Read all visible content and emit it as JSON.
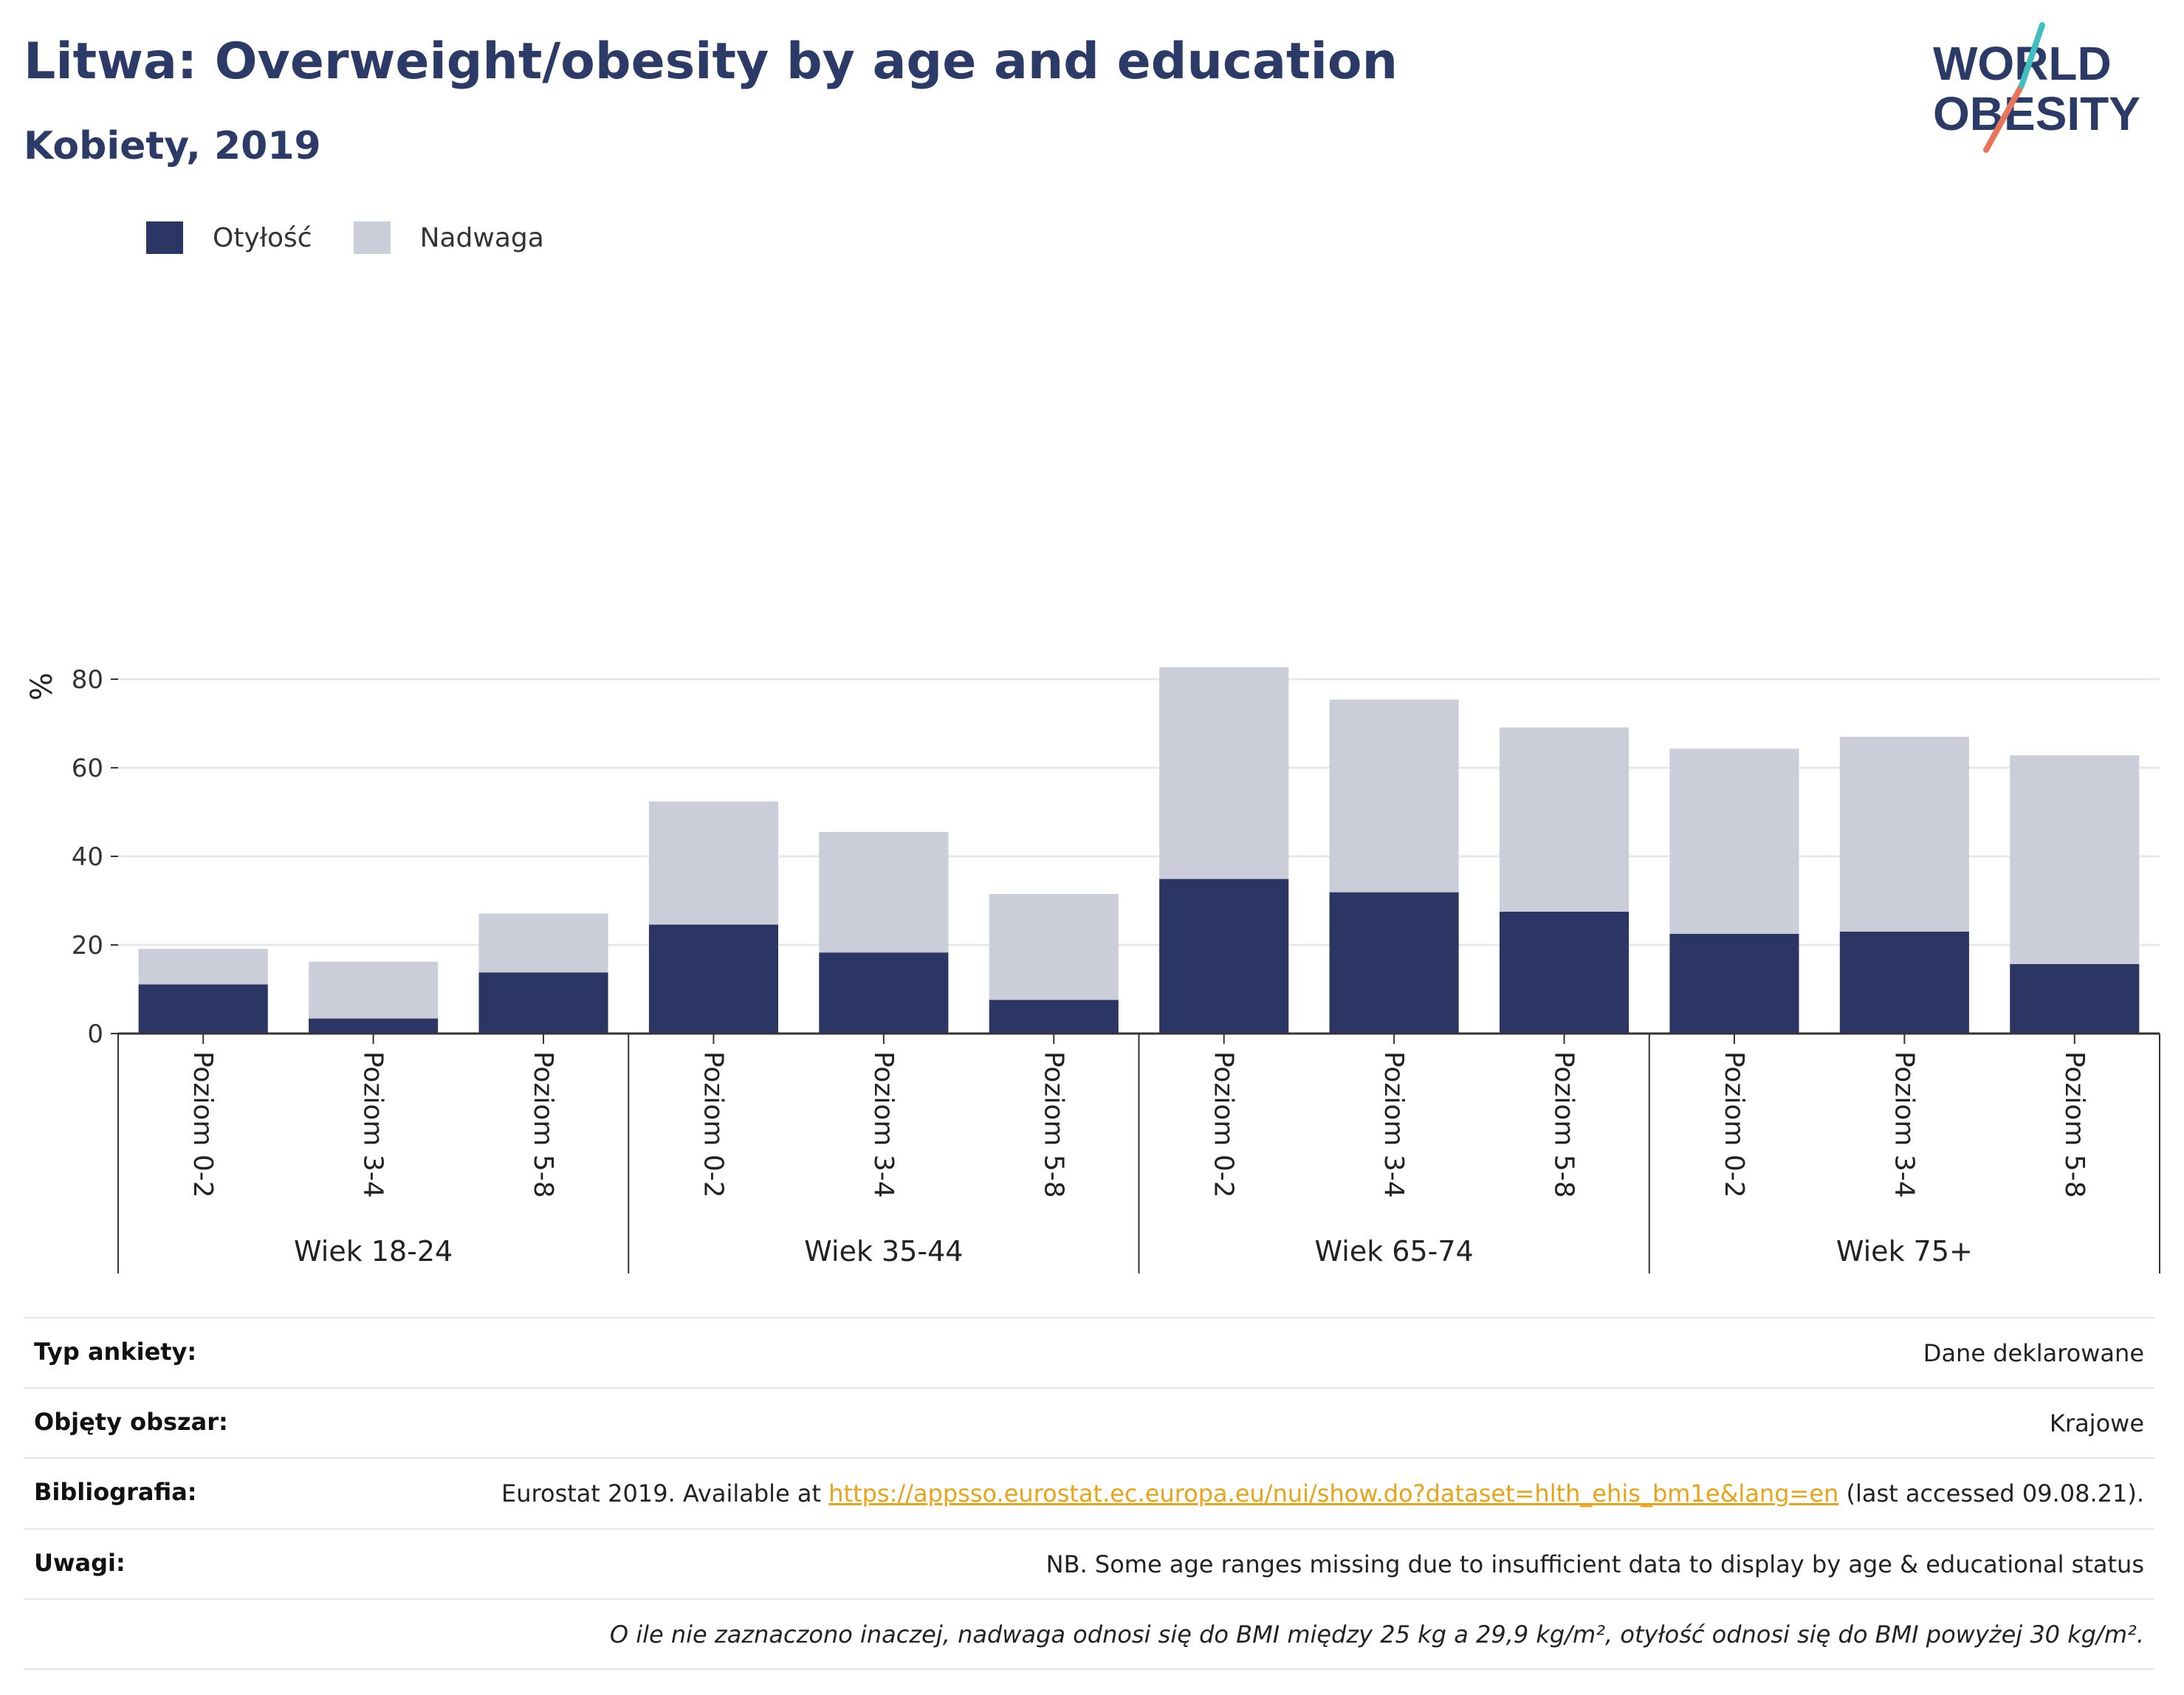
{
  "header": {
    "title": "Litwa: Overweight/obesity by age and education",
    "subtitle": "Kobiety, 2019"
  },
  "logo": {
    "line1": "WORLD",
    "line2": "OBESITY"
  },
  "colors": {
    "obesity": "#2b3664",
    "overweight": "#cbcdd9",
    "accent_orange": "#e8745a",
    "accent_teal": "#3fbfc0",
    "link": "#e8a317"
  },
  "legend": [
    {
      "label": "Otyłość",
      "color": "#2b3664"
    },
    {
      "label": "Nadwaga",
      "color": "#cbcdd9"
    }
  ],
  "chart_data": {
    "type": "bar",
    "stacked": true,
    "ylabel": "%",
    "ylim": [
      0,
      90
    ],
    "yticks": [
      0,
      20,
      40,
      60,
      80
    ],
    "grid": true,
    "legend_position": "top-left",
    "groups": [
      "Wiek 18-24",
      "Wiek 35-44",
      "Wiek 65-74",
      "Wiek 75+"
    ],
    "categories": [
      "Poziom 0-2",
      "Poziom 3-4",
      "Poziom 5-8",
      "Poziom 0-2",
      "Poziom 3-4",
      "Poziom 5-8",
      "Poziom 0-2",
      "Poziom 3-4",
      "Poziom 5-8",
      "Poziom 0-2",
      "Poziom 3-4",
      "Poziom 5-8"
    ],
    "series": [
      {
        "name": "Otyłość",
        "values": [
          11.1,
          3.4,
          13.8,
          24.6,
          18.3,
          7.6,
          34.9,
          31.9,
          27.5,
          22.5,
          23.0,
          15.7
        ]
      },
      {
        "name": "Nadwaga",
        "values": [
          8.0,
          12.8,
          13.3,
          27.8,
          27.2,
          23.9,
          47.8,
          43.5,
          41.6,
          41.8,
          44.0,
          47.1
        ]
      }
    ]
  },
  "info": {
    "survey_label": "Typ ankiety:",
    "survey_value": "Dane deklarowane",
    "area_label": "Objęty obszar:",
    "area_value": "Krajowe",
    "biblio_label": "Bibliografia:",
    "biblio_prefix": "Eurostat 2019. Available at ",
    "biblio_link": "https://appsso.eurostat.ec.europa.eu/nui/show.do?dataset=hlth_ehis_bm1e&lang=en",
    "biblio_suffix": " (last accessed 09.08.21).",
    "notes_label": "Uwagi:",
    "notes_value": "NB. Some age ranges missing due to insufficient data to display by age & educational status",
    "footnote": "O ile nie zaznaczono inaczej, nadwaga odnosi się do BMI między 25 kg a 29,9 kg/m², otyłość odnosi się do BMI powyżej 30 kg/m²."
  }
}
